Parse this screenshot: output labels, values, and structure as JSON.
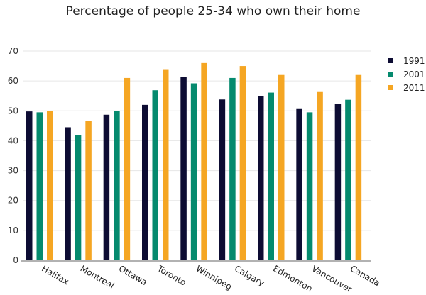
{
  "chart_data": {
    "type": "bar",
    "title": "Percentage of people 25-34 who own their home",
    "xlabel": "",
    "ylabel": "",
    "ylim": [
      0,
      70
    ],
    "yticks": [
      0,
      10,
      20,
      30,
      40,
      50,
      60,
      70
    ],
    "grid": true,
    "legend_position": "right",
    "categories": [
      "Halifax",
      "Montreal",
      "Ottawa",
      "Toronto",
      "Winnipeg",
      "Calgary",
      "Edmonton",
      "Vancouver",
      "Canada"
    ],
    "series": [
      {
        "name": "1991",
        "color": "#0d0c33",
        "values": [
          49.8,
          44.5,
          48.7,
          52,
          61.4,
          53.8,
          55,
          50.6,
          52.3
        ]
      },
      {
        "name": "2001",
        "color": "#058a6e",
        "values": [
          49.5,
          41.8,
          50,
          56.9,
          59.2,
          61,
          56.1,
          49.5,
          53.7
        ]
      },
      {
        "name": "2011",
        "color": "#f5a623",
        "values": [
          50,
          46.6,
          61,
          63.7,
          66,
          65,
          62,
          56.3,
          62
        ]
      }
    ]
  }
}
